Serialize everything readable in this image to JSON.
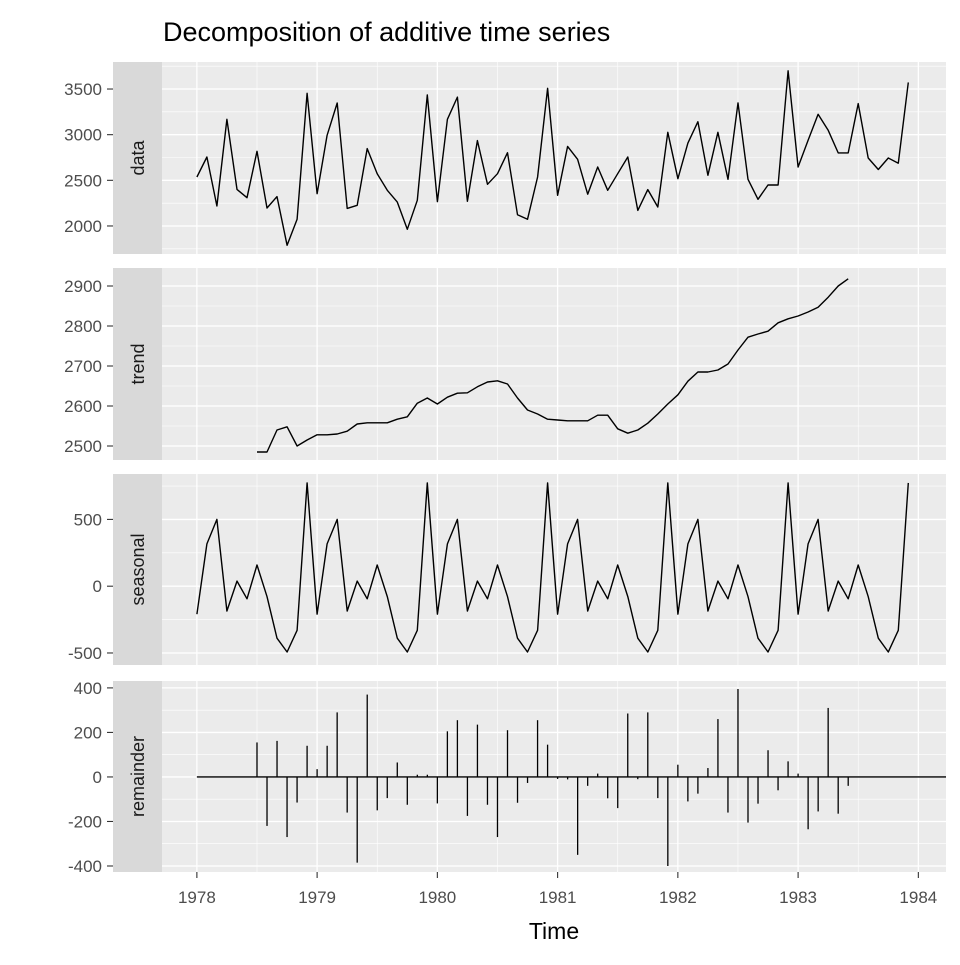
{
  "chart_data": {
    "type": "line",
    "title": "Decomposition of additive time series",
    "xlabel": "Time",
    "x_start": 1978,
    "frequency": 12,
    "xlim": [
      1977.71,
      1984.23
    ],
    "x_ticks": [
      1978,
      1979,
      1980,
      1981,
      1982,
      1983,
      1984
    ],
    "grid": true,
    "panels": [
      {
        "name": "data",
        "strip_label": "data",
        "style": "line",
        "start_index": 0,
        "ylim": [
          1693,
          3796
        ],
        "y_ticks": [
          2000,
          2500,
          3000,
          3500
        ],
        "values": [
          2536,
          2755,
          2219,
          3168,
          2401,
          2310,
          2818,
          2197,
          2322,
          1788,
          2073,
          3453,
          2354,
          2993,
          3347,
          2193,
          2226,
          2847,
          2573,
          2391,
          2262,
          1963,
          2281,
          3434,
          2266,
          3168,
          3412,
          2270,
          2935,
          2456,
          2573,
          2803,
          2124,
          2073,
          2536,
          3508,
          2336,
          2872,
          2730,
          2348,
          2646,
          2391,
          2573,
          2755,
          2171,
          2398,
          2208,
          3026,
          2518,
          2908,
          3142,
          2555,
          3026,
          2511,
          3347,
          2511,
          2292,
          2449,
          2449,
          3700,
          2646,
          2938,
          3223,
          3048,
          2800,
          2800,
          3340,
          2745,
          2618,
          2745,
          2687,
          3573
        ]
      },
      {
        "name": "trend",
        "strip_label": "trend",
        "style": "line",
        "start_index": 6,
        "ylim": [
          2465,
          2945
        ],
        "y_ticks": [
          2500,
          2600,
          2700,
          2800,
          2900
        ],
        "values": [
          2485,
          2485,
          2540,
          2548,
          2500,
          2515,
          2528,
          2528,
          2530,
          2537,
          2555,
          2558,
          2558,
          2558,
          2567,
          2573,
          2607,
          2620,
          2605,
          2622,
          2632,
          2633,
          2648,
          2660,
          2663,
          2655,
          2620,
          2590,
          2580,
          2567,
          2565,
          2563,
          2563,
          2563,
          2577,
          2577,
          2543,
          2532,
          2540,
          2557,
          2580,
          2605,
          2628,
          2662,
          2685,
          2685,
          2690,
          2705,
          2740,
          2772,
          2780,
          2787,
          2808,
          2818,
          2825,
          2835,
          2847,
          2872,
          2900,
          2918
        ]
      },
      {
        "name": "seasonal",
        "strip_label": "seasonal",
        "style": "line",
        "start_index": 0,
        "ylim": [
          -590,
          840
        ],
        "y_ticks": [
          -500,
          0,
          500
        ],
        "period_values": [
          -210,
          317,
          500,
          -186,
          38,
          -94,
          159,
          -78,
          -389,
          -493,
          -330,
          773
        ],
        "length": 72
      },
      {
        "name": "remainder",
        "strip_label": "remainder",
        "style": "bars",
        "start_index": 6,
        "ylim": [
          -427,
          431
        ],
        "y_ticks": [
          -400,
          -200,
          0,
          200,
          400
        ],
        "values": [
          155,
          -220,
          162,
          -270,
          -115,
          140,
          35,
          140,
          290,
          -160,
          -385,
          370,
          -150,
          -95,
          65,
          -125,
          10,
          10,
          -119,
          205,
          255,
          -175,
          235,
          -125,
          -270,
          210,
          -116,
          -27,
          255,
          145,
          -9,
          -11,
          -350,
          -40,
          15,
          -96,
          -140,
          285,
          -10,
          290,
          -95,
          -400,
          55,
          -110,
          -75,
          40,
          260,
          -160,
          395,
          -205,
          -120,
          120,
          -60,
          70,
          15,
          -235,
          -155,
          310,
          -165,
          -40
        ]
      }
    ]
  }
}
